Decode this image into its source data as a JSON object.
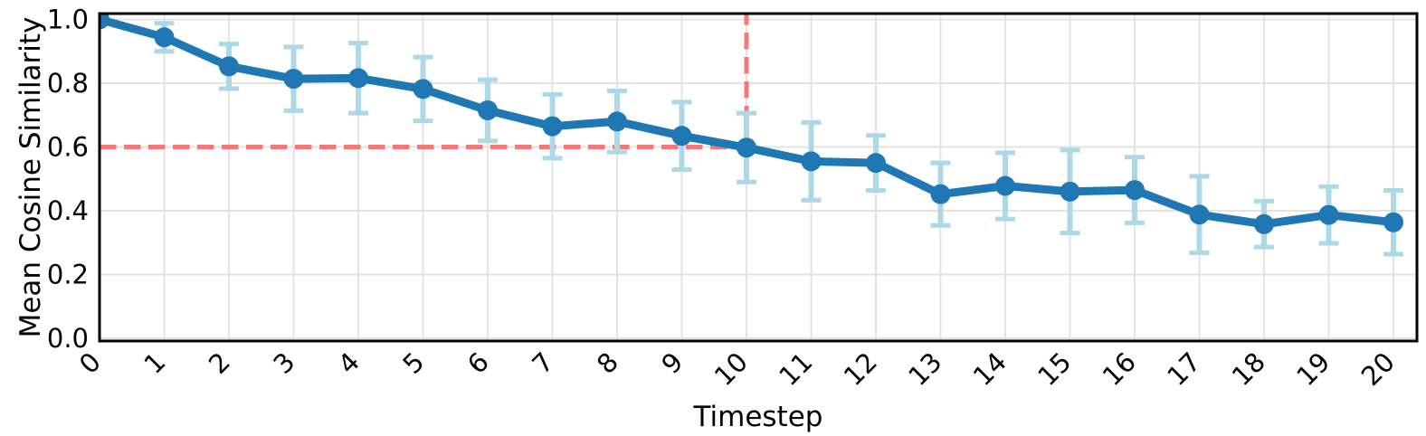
{
  "chart_data": {
    "type": "line",
    "title": "",
    "xlabel": "Timestep",
    "ylabel": "Mean Cosine Similarity",
    "x": [
      0,
      1,
      2,
      3,
      4,
      5,
      6,
      7,
      8,
      9,
      10,
      11,
      12,
      13,
      14,
      15,
      16,
      17,
      18,
      19,
      20
    ],
    "xtick_labels": [
      "0",
      "1",
      "2",
      "3",
      "4",
      "5",
      "6",
      "7",
      "8",
      "9",
      "10",
      "11",
      "12",
      "13",
      "14",
      "15",
      "16",
      "17",
      "18",
      "19",
      "20"
    ],
    "yticks": [
      0.0,
      0.2,
      0.4,
      0.6,
      0.8,
      1.0
    ],
    "ytick_labels": [
      "0.0",
      "0.2",
      "0.4",
      "0.6",
      "0.8",
      "1.0"
    ],
    "ylim": [
      0.0,
      1.02
    ],
    "xlim": [
      0.0,
      20.35
    ],
    "grid": true,
    "legend": "none",
    "series": [
      {
        "name": "mean-cosine-similarity",
        "marker": "circle",
        "values": [
          1.0,
          0.944,
          0.853,
          0.814,
          0.816,
          0.782,
          0.715,
          0.665,
          0.68,
          0.635,
          0.598,
          0.555,
          0.55,
          0.452,
          0.478,
          0.46,
          0.465,
          0.388,
          0.358,
          0.387,
          0.364
        ],
        "errors": [
          0.0,
          0.044,
          0.07,
          0.1,
          0.11,
          0.1,
          0.096,
          0.1,
          0.096,
          0.106,
          0.108,
          0.122,
          0.086,
          0.098,
          0.104,
          0.13,
          0.103,
          0.12,
          0.072,
          0.089,
          0.1
        ]
      }
    ],
    "annotations": [
      {
        "type": "hline",
        "y": 0.6,
        "x0": 0,
        "x1": 10,
        "style": "dashed"
      },
      {
        "type": "vline",
        "x": 10,
        "y0": 0.6,
        "y1": 1.02,
        "style": "dashed"
      }
    ],
    "colors": {
      "line": "#1f77b4",
      "marker": "#1f77b4",
      "error_bar": "#add8e6",
      "annotation": "#f47878",
      "grid": "#e3e3e3",
      "spine": "#000000",
      "text": "#000000",
      "background": "#ffffff"
    }
  }
}
